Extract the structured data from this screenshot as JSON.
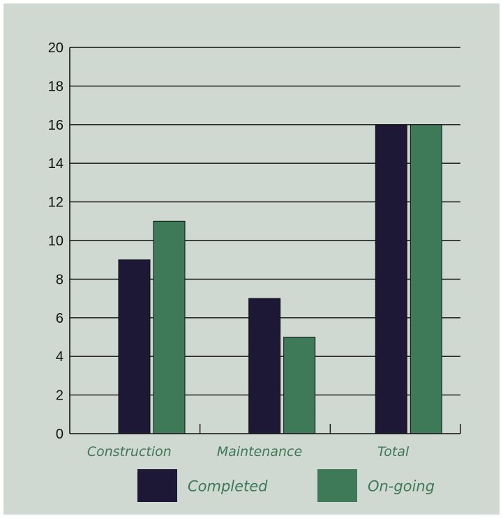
{
  "chart_data": {
    "type": "bar",
    "title": "",
    "xlabel": "",
    "ylabel": "",
    "categories": [
      "Construction",
      "Maintenance",
      "Total"
    ],
    "series": [
      {
        "name": "Completed",
        "values": [
          9,
          7,
          16
        ],
        "color": "#1c1836"
      },
      {
        "name": "On-going",
        "values": [
          11,
          5,
          16
        ],
        "color": "#3e7a57"
      }
    ],
    "ylim": [
      0,
      20
    ],
    "yticks": [
      0,
      2,
      4,
      6,
      8,
      10,
      12,
      14,
      16,
      18,
      20
    ],
    "grid": true,
    "legend_position": "bottom"
  },
  "colors": {
    "background": "#cfd8d1",
    "axis": "#111111",
    "category_label": "#3e7a57",
    "legend_label": "#3e7a57"
  }
}
